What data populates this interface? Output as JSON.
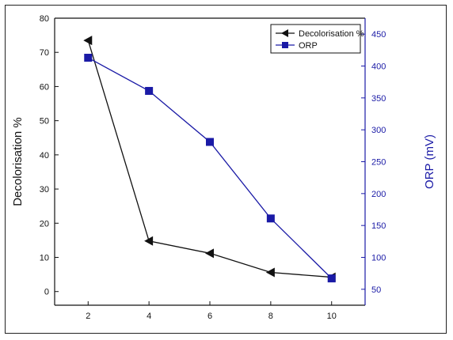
{
  "chart_data": {
    "type": "line",
    "x": [
      2,
      4,
      6,
      8,
      10
    ],
    "xlim": [
      0.9,
      11.1
    ],
    "xticks": [
      2,
      4,
      6,
      8,
      10
    ],
    "series": [
      {
        "name": "Decolorisation %",
        "axis": "left",
        "color": "#111111",
        "marker": "left-triangle",
        "values": [
          73.5,
          14.8,
          11.2,
          5.6,
          4.2
        ]
      },
      {
        "name": "ORP",
        "axis": "right",
        "color": "#1a1aa6",
        "marker": "square",
        "values": [
          413,
          361,
          281,
          161,
          67
        ]
      }
    ],
    "y_left": {
      "label": "Decolorisation %",
      "lim": [
        -4,
        80
      ],
      "ticks": [
        0,
        10,
        20,
        30,
        40,
        50,
        60,
        70,
        80
      ]
    },
    "y_right": {
      "label": "ORP (mV)",
      "lim": [
        25,
        475
      ],
      "ticks": [
        50,
        100,
        150,
        200,
        250,
        300,
        350,
        400,
        450
      ]
    },
    "legend_position": "top-right",
    "grid": false
  }
}
